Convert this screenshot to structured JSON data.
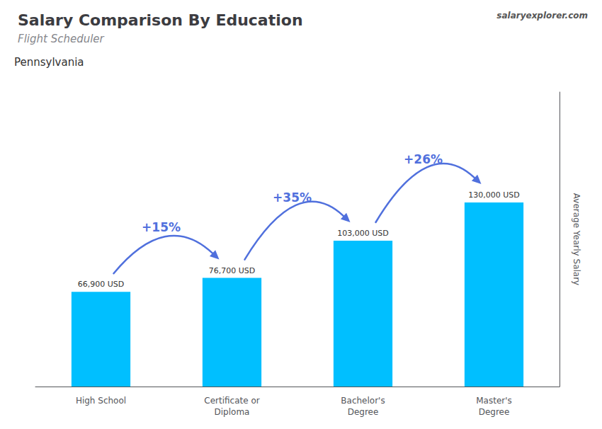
{
  "chart_data": {
    "type": "bar",
    "title": "Salary Comparison By Education",
    "subtitle": "Flight Scheduler",
    "annotations": [
      "Pennsylvania",
      "salaryexplorer.com"
    ],
    "ylabel": "Average Yearly Salary",
    "categories": [
      "High School",
      "Certificate or\nDiploma",
      "Bachelor's\nDegree",
      "Master's\nDegree"
    ],
    "values": [
      66900,
      76700,
      103000,
      130000
    ],
    "value_labels": [
      "66,900 USD",
      "76,700 USD",
      "103,000 USD",
      "130,000 USD"
    ],
    "pct_labels": [
      "+15%",
      "+35%",
      "+26%"
    ],
    "color": "#00BFFF",
    "ylim": [
      0,
      208000
    ],
    "grid": false,
    "data_labels": true,
    "tick_labels": "x"
  }
}
